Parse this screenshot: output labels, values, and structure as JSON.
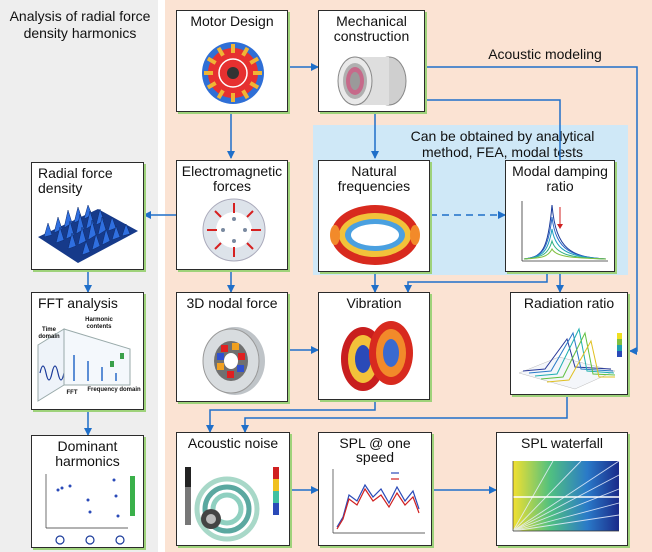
{
  "left_panel_title": "Analysis of radial force density harmonics",
  "acoustic_modeling_label": "Acoustic modeling",
  "blue_zone_caption": "Can be obtained by analytical method, FEA, modal tests",
  "boxes": {
    "motor_design": "Motor Design",
    "mechanical_construction": "Mechanical construction",
    "radial_force_density": "Radial force density",
    "electromagnetic_forces": "Electromagnetic forces",
    "natural_frequencies": "Natural frequencies",
    "modal_damping_ratio": "Modal damping ratio",
    "fft_analysis": "FFT analysis",
    "nodal_force_3d": "3D nodal force",
    "vibration": "Vibration",
    "radiation_ratio": "Radiation ratio",
    "dominant_harmonics": "Dominant harmonics",
    "acoustic_noise": "Acoustic noise",
    "spl_one_speed": "SPL @ one speed",
    "spl_waterfall": "SPL waterfall"
  },
  "fft_labels": {
    "time_domain": "Time domain",
    "harmonic_contents": "Harmonic contents",
    "frequency_domain": "Frequency domain",
    "fft": "FFT"
  },
  "colors": {
    "arrow": "#1f6fc9",
    "left_panel": "#eeeeee",
    "right_panel": "#fbe3d3",
    "blue_zone": "#cfe8f7",
    "box_shadow": "#9ed27a"
  }
}
